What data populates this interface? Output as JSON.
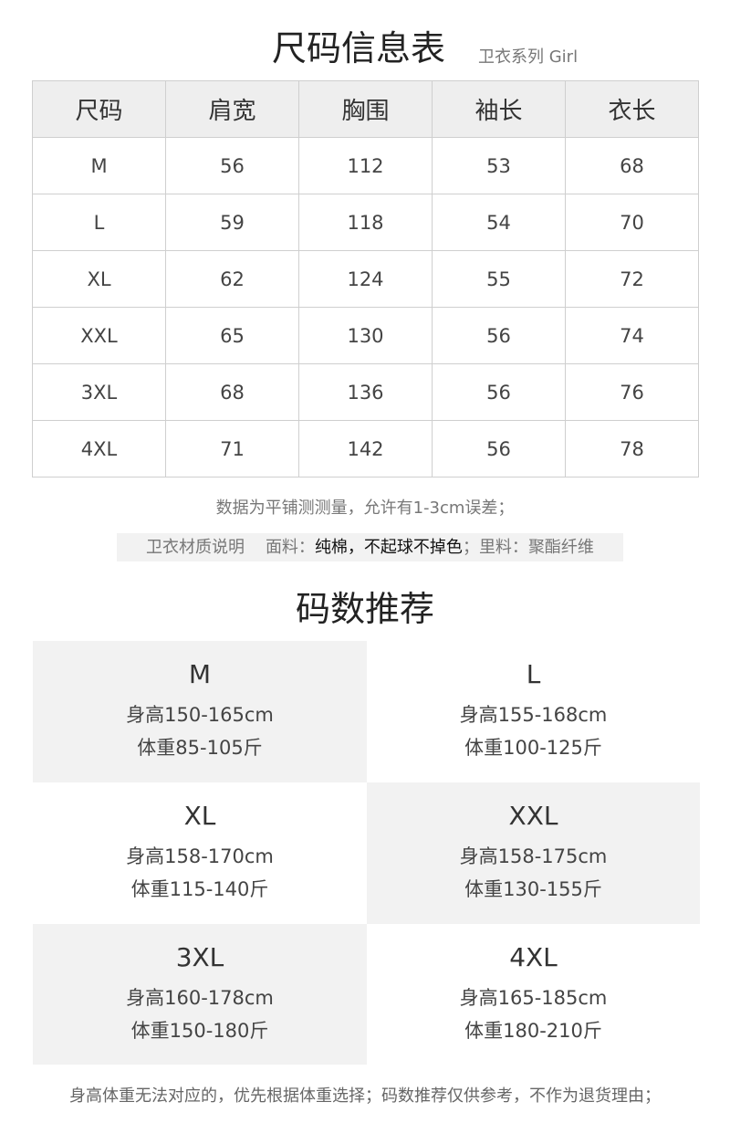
{
  "title": {
    "main": "尺码信息表",
    "sub": "卫衣系列  Girl"
  },
  "size_table": {
    "headers": [
      "尺码",
      "肩宽",
      "胸围",
      "袖长",
      "衣长"
    ],
    "rows": [
      [
        "M",
        "56",
        "112",
        "53",
        "68"
      ],
      [
        "L",
        "59",
        "118",
        "54",
        "70"
      ],
      [
        "XL",
        "62",
        "124",
        "55",
        "72"
      ],
      [
        "XXL",
        "65",
        "130",
        "56",
        "74"
      ],
      [
        "3XL",
        "68",
        "136",
        "56",
        "76"
      ],
      [
        "4XL",
        "71",
        "142",
        "56",
        "78"
      ]
    ]
  },
  "note": "数据为平铺测测量，允许有1-3cm误差；",
  "material": {
    "label": "卫衣材质说明",
    "fabric_label": "面料：",
    "fabric_value": "纯棉，不起球不掉色",
    "sep": "；",
    "lining_label": "里料：",
    "lining_value": "聚酯纤维"
  },
  "recommend": {
    "title": "码数推荐",
    "items": [
      {
        "size": "M",
        "height": "身高150-165cm",
        "weight": "体重85-105斤"
      },
      {
        "size": "L",
        "height": "身高155-168cm",
        "weight": "体重100-125斤"
      },
      {
        "size": "XL",
        "height": "身高158-170cm",
        "weight": "体重115-140斤"
      },
      {
        "size": "XXL",
        "height": "身高158-175cm",
        "weight": "体重130-155斤"
      },
      {
        "size": "3XL",
        "height": "身高160-178cm",
        "weight": "体重150-180斤"
      },
      {
        "size": "4XL",
        "height": "身高165-185cm",
        "weight": "体重180-210斤"
      }
    ]
  },
  "footer": "身高体重无法对应的，优先根据体重选择；码数推荐仅供参考，不作为退货理由；",
  "colors": {
    "header_bg": "#eeeeee",
    "cell_gray": "#f2f2f2",
    "border": "#cfcfcf"
  }
}
